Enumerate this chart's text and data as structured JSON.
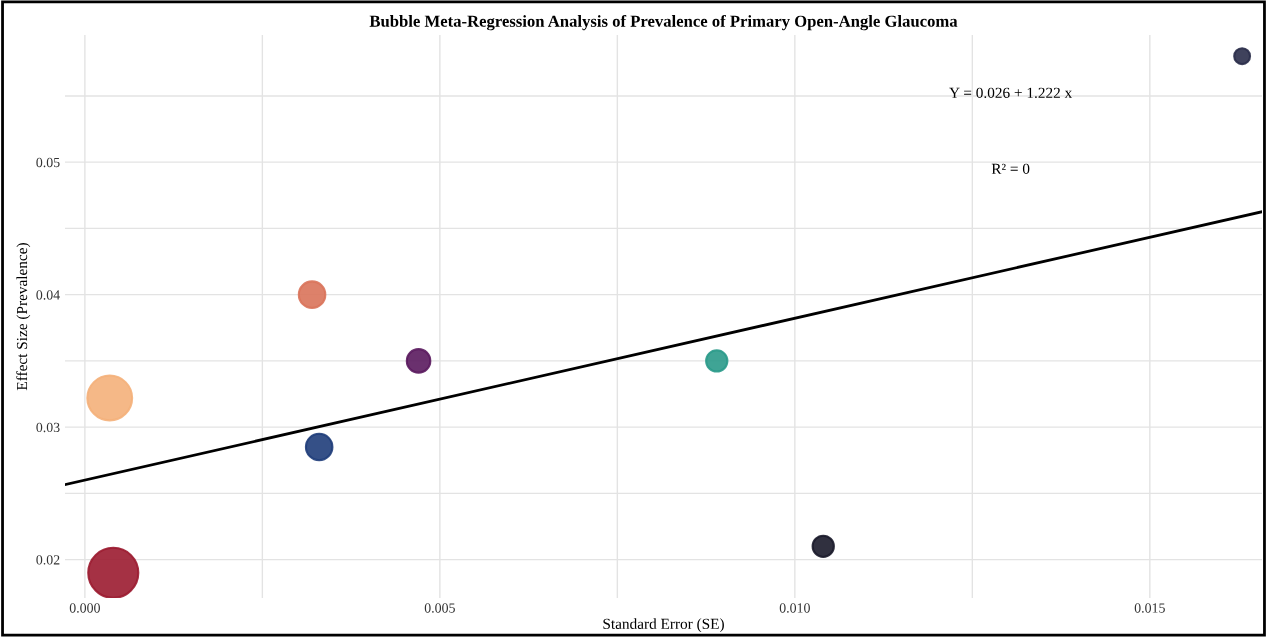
{
  "chart_data": {
    "type": "bubble",
    "title": "Bubble Meta-Regression Analysis of Prevalence of Primary Open-Angle Glaucoma",
    "xlabel": "Standard Error (SE)",
    "ylabel": "Effect Size (Prevalence)",
    "xlim": [
      -0.00028,
      0.01658
    ],
    "ylim": [
      0.0171,
      0.0596
    ],
    "xticks": [
      {
        "value": 0,
        "label": "0.000"
      },
      {
        "value": 0.0025,
        "label": null
      },
      {
        "value": 0.005,
        "label": "0.005"
      },
      {
        "value": 0.0075,
        "label": null
      },
      {
        "value": 0.01,
        "label": "0.010"
      },
      {
        "value": 0.0125,
        "label": null
      },
      {
        "value": 0.015,
        "label": "0.015"
      }
    ],
    "yticks": [
      0.02,
      {
        "value": 0.025,
        "label": null
      },
      0.03,
      {
        "value": 0.035,
        "label": null
      },
      0.04,
      {
        "value": 0.045,
        "label": null
      },
      0.05,
      {
        "value": 0.055,
        "label": null
      }
    ],
    "grid": true,
    "legend": false,
    "series": [
      {
        "x": [
          0.0163,
          0.0032,
          0.0047,
          0.00035,
          0.0033,
          0.0089,
          0.0104,
          0.0004
        ],
        "values": [
          0.058,
          0.04,
          0.035,
          0.0322,
          0.0285,
          0.035,
          0.021,
          0.019
        ],
        "sizes": [
          0.1,
          0.28,
          0.22,
          0.8,
          0.28,
          0.18,
          0.18,
          1
        ],
        "colors": [
          "#2a2d4a",
          "#d9735a",
          "#5a1a5e",
          "#f4b07a",
          "#1f3d7a",
          "#2a9a8a",
          "#1a1a2a",
          "#9b1b30"
        ]
      },
      {
        "type": "line",
        "x": [
          -0.00028,
          0.01658
        ],
        "values": [
          0.02566,
          0.04626
        ],
        "color": "#000000"
      }
    ],
    "annotations": [
      "Y = 0.026 + 1.222 x",
      "R² = 0"
    ]
  }
}
